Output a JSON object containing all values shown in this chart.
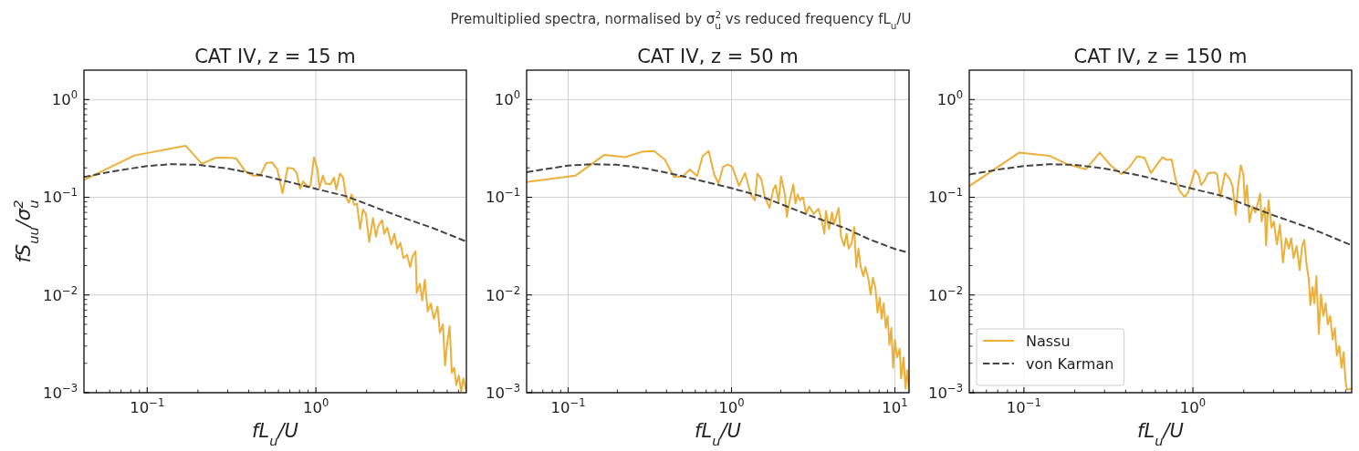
{
  "chart_data": [
    {
      "type": "line",
      "title": "CAT IV, z = 15 m",
      "xlabel": "fL$_{u}$/U",
      "ylabel": "fS$_{uu}$/σ$_{u}$$^{2}$",
      "annotations": [
        "Premultiplied spectra, normalised by σ$_{u}$$^{2}$ vs reduced frequency fL$_{u}$/U"
      ],
      "log": "xy",
      "grid": true,
      "xlim": [
        0.0422,
        7.8
      ],
      "ylim": [
        0.001,
        2
      ],
      "xticks": [
        {
          "value": 0.05,
          "label": null
        },
        {
          "value": 0.06,
          "label": null
        },
        {
          "value": 0.07,
          "label": null
        },
        {
          "value": 0.08,
          "label": null
        },
        {
          "value": 0.09,
          "label": null
        },
        {
          "value": 0.1,
          "label": "10$^{−1}$"
        },
        {
          "value": 0.2,
          "label": null
        },
        {
          "value": 0.3,
          "label": null
        },
        {
          "value": 0.4,
          "label": null
        },
        {
          "value": 0.5,
          "label": null
        },
        {
          "value": 0.6,
          "label": null
        },
        {
          "value": 0.7,
          "label": null
        },
        {
          "value": 0.8,
          "label": null
        },
        {
          "value": 0.9,
          "label": null
        },
        {
          "value": 1,
          "label": "10$^{0}$"
        },
        {
          "value": 2,
          "label": null
        },
        {
          "value": 3,
          "label": null
        },
        {
          "value": 4,
          "label": null
        },
        {
          "value": 5,
          "label": null
        },
        {
          "value": 6,
          "label": null
        },
        {
          "value": 7,
          "label": null
        }
      ],
      "yticks": [
        {
          "value": 0.001,
          "label": "10$^{−3}$"
        },
        {
          "value": 0.002,
          "label": null
        },
        {
          "value": 0.003,
          "label": null
        },
        {
          "value": 0.004,
          "label": null
        },
        {
          "value": 0.005,
          "label": null
        },
        {
          "value": 0.006,
          "label": null
        },
        {
          "value": 0.007,
          "label": null
        },
        {
          "value": 0.008,
          "label": null
        },
        {
          "value": 0.009,
          "label": null
        },
        {
          "value": 0.01,
          "label": "10$^{−2}$"
        },
        {
          "value": 0.02,
          "label": null
        },
        {
          "value": 0.03,
          "label": null
        },
        {
          "value": 0.04,
          "label": null
        },
        {
          "value": 0.05,
          "label": null
        },
        {
          "value": 0.06,
          "label": null
        },
        {
          "value": 0.07,
          "label": null
        },
        {
          "value": 0.08,
          "label": null
        },
        {
          "value": 0.09,
          "label": null
        },
        {
          "value": 0.1,
          "label": "10$^{−1}$"
        },
        {
          "value": 0.2,
          "label": null
        },
        {
          "value": 0.3,
          "label": null
        },
        {
          "value": 0.4,
          "label": null
        },
        {
          "value": 0.5,
          "label": null
        },
        {
          "value": 0.6,
          "label": null
        },
        {
          "value": 0.7,
          "label": null
        },
        {
          "value": 0.8,
          "label": null
        },
        {
          "value": 0.9,
          "label": null
        },
        {
          "value": 1,
          "label": "10$^{0}$"
        }
      ],
      "series": [
        {
          "color": "#ecb03a",
          "line_style": "solid",
          "x": [
            0.0422,
            0.084,
            0.169,
            0.211,
            0.254,
            0.294,
            0.337,
            0.382,
            0.422,
            0.468,
            0.508,
            0.548,
            0.59,
            0.634,
            0.68,
            0.733,
            0.77,
            0.806,
            0.84,
            0.891,
            0.928,
            0.975,
            1.02,
            1.05,
            1.1,
            1.14,
            1.22,
            1.28,
            1.32,
            1.39,
            1.45,
            1.51,
            1.57,
            1.63,
            1.68,
            1.75,
            1.83,
            1.9,
            1.98,
            2.07,
            2.18,
            2.27,
            2.34,
            2.47,
            2.54,
            2.65,
            2.8,
            2.92,
            3.04,
            3.17,
            3.3,
            3.47,
            3.62,
            3.74,
            3.9,
            3.96,
            4.13,
            4.27,
            4.42,
            4.6,
            4.8,
            5,
            5.26,
            5.43,
            5.66,
            5.83,
            6,
            6.21,
            6.39,
            6.6,
            6.8,
            7.03,
            7.26,
            7.48,
            7.8
          ],
          "values": [
            0.15,
            0.268,
            0.337,
            0.22,
            0.253,
            0.255,
            0.25,
            0.184,
            0.167,
            0.167,
            0.224,
            0.228,
            0.194,
            0.11,
            0.2,
            0.197,
            0.177,
            0.122,
            0.145,
            0.129,
            0.131,
            0.257,
            0.196,
            0.124,
            0.167,
            0.138,
            0.136,
            0.159,
            0.12,
            0.175,
            0.159,
            0.1,
            0.088,
            0.107,
            0.0836,
            0.0864,
            0.0472,
            0.0751,
            0.0675,
            0.0349,
            0.0615,
            0.0395,
            0.0507,
            0.0585,
            0.0424,
            0.0489,
            0.033,
            0.0424,
            0.0297,
            0.0342,
            0.0239,
            0.0257,
            0.0193,
            0.0248,
            0.028,
            0.0105,
            0.013,
            0.0088,
            0.0143,
            0.0068,
            0.0082,
            0.0057,
            0.0076,
            0.0041,
            0.005,
            0.0019,
            0.0032,
            0.0048,
            0.0016,
            0.0018,
            0.0012,
            0.0015,
            0.00103,
            0.0014,
            0.00103
          ]
        },
        {
          "color": "#444444",
          "line_style": "dashed",
          "x": [
            0.0422,
            0.06,
            0.1,
            0.14,
            0.2,
            0.3,
            0.5,
            0.7,
            1,
            1.5,
            2,
            3,
            5,
            7.8
          ],
          "values": [
            0.161,
            0.182,
            0.209,
            0.218,
            0.215,
            0.197,
            0.165,
            0.143,
            0.122,
            0.103,
            0.0853,
            0.0653,
            0.048,
            0.0352
          ]
        }
      ]
    },
    {
      "type": "line",
      "title": "CAT IV, z = 50 m",
      "xlabel": "fL$_{u}$/U",
      "log": "xy",
      "grid": true,
      "xlim": [
        0.0557,
        12.2
      ],
      "ylim": [
        0.001,
        2
      ],
      "xticks": [
        {
          "value": 0.06,
          "label": null
        },
        {
          "value": 0.07,
          "label": null
        },
        {
          "value": 0.08,
          "label": null
        },
        {
          "value": 0.09,
          "label": null
        },
        {
          "value": 0.1,
          "label": "10$^{−1}$"
        },
        {
          "value": 0.2,
          "label": null
        },
        {
          "value": 0.3,
          "label": null
        },
        {
          "value": 0.4,
          "label": null
        },
        {
          "value": 0.5,
          "label": null
        },
        {
          "value": 0.6,
          "label": null
        },
        {
          "value": 0.7,
          "label": null
        },
        {
          "value": 0.8,
          "label": null
        },
        {
          "value": 0.9,
          "label": null
        },
        {
          "value": 1,
          "label": "10$^{0}$"
        },
        {
          "value": 2,
          "label": null
        },
        {
          "value": 3,
          "label": null
        },
        {
          "value": 4,
          "label": null
        },
        {
          "value": 5,
          "label": null
        },
        {
          "value": 6,
          "label": null
        },
        {
          "value": 7,
          "label": null
        },
        {
          "value": 8,
          "label": null
        },
        {
          "value": 9,
          "label": null
        },
        {
          "value": 10,
          "label": "10$^{1}$"
        }
      ],
      "yticks": [
        {
          "value": 0.001,
          "label": "10$^{−3}$"
        },
        {
          "value": 0.002,
          "label": null
        },
        {
          "value": 0.003,
          "label": null
        },
        {
          "value": 0.004,
          "label": null
        },
        {
          "value": 0.005,
          "label": null
        },
        {
          "value": 0.006,
          "label": null
        },
        {
          "value": 0.007,
          "label": null
        },
        {
          "value": 0.008,
          "label": null
        },
        {
          "value": 0.009,
          "label": null
        },
        {
          "value": 0.01,
          "label": "10$^{−2}$"
        },
        {
          "value": 0.02,
          "label": null
        },
        {
          "value": 0.03,
          "label": null
        },
        {
          "value": 0.04,
          "label": null
        },
        {
          "value": 0.05,
          "label": null
        },
        {
          "value": 0.06,
          "label": null
        },
        {
          "value": 0.07,
          "label": null
        },
        {
          "value": 0.08,
          "label": null
        },
        {
          "value": 0.09,
          "label": null
        },
        {
          "value": 0.1,
          "label": "10$^{−1}$"
        },
        {
          "value": 0.2,
          "label": null
        },
        {
          "value": 0.3,
          "label": null
        },
        {
          "value": 0.4,
          "label": null
        },
        {
          "value": 0.5,
          "label": null
        },
        {
          "value": 0.6,
          "label": null
        },
        {
          "value": 0.7,
          "label": null
        },
        {
          "value": 0.8,
          "label": null
        },
        {
          "value": 0.9,
          "label": null
        },
        {
          "value": 1,
          "label": "10$^{0}$"
        }
      ],
      "series": [
        {
          "color": "#ecb03a",
          "line_style": "solid",
          "x": [
            0.0557,
            0.111,
            0.167,
            0.223,
            0.282,
            0.335,
            0.389,
            0.444,
            0.503,
            0.556,
            0.616,
            0.665,
            0.725,
            0.783,
            0.832,
            0.887,
            0.95,
            1.01,
            1.11,
            1.21,
            1.31,
            1.39,
            1.44,
            1.52,
            1.6,
            1.71,
            1.8,
            1.86,
            1.94,
            2.01,
            2.12,
            2.18,
            2.26,
            2.39,
            2.46,
            2.54,
            2.62,
            2.74,
            2.86,
            2.98,
            3.18,
            3.4,
            3.54,
            3.7,
            3.78,
            3.95,
            4.12,
            4.24,
            4.39,
            4.52,
            4.68,
            4.89,
            5.06,
            5.21,
            5.44,
            5.63,
            5.8,
            5.98,
            6.18,
            6.4,
            6.6,
            6.89,
            7.1,
            7.34,
            7.6,
            7.83,
            8.07,
            8.28,
            8.53,
            8.79,
            9.02,
            9.25,
            9.5,
            9.75,
            10,
            10.3,
            10.7,
            10.9,
            11.3,
            11.6,
            11.9,
            12.2
          ],
          "values": [
            0.143,
            0.167,
            0.272,
            0.257,
            0.292,
            0.297,
            0.245,
            0.162,
            0.163,
            0.193,
            0.165,
            0.263,
            0.297,
            0.171,
            0.138,
            0.205,
            0.216,
            0.205,
            0.131,
            0.177,
            0.107,
            0.0931,
            0.175,
            0.154,
            0.1,
            0.0779,
            0.12,
            0.133,
            0.0898,
            0.163,
            0.107,
            0.0628,
            0.0898,
            0.135,
            0.0867,
            0.107,
            0.0931,
            0.1,
            0.0675,
            0.0807,
            0.0675,
            0.0762,
            0.0606,
            0.0424,
            0.0725,
            0.0472,
            0.07,
            0.0525,
            0.0651,
            0.0779,
            0.0395,
            0.0318,
            0.0424,
            0.0297,
            0.0342,
            0.0496,
            0.0193,
            0.0297,
            0.0193,
            0.0156,
            0.0193,
            0.0145,
            0.0101,
            0.015,
            0.0117,
            0.0066,
            0.0094,
            0.0057,
            0.0082,
            0.0046,
            0.0061,
            0.0031,
            0.0046,
            0.0018,
            0.0035,
            0.0023,
            0.0028,
            0.0014,
            0.0023,
            0.0011,
            0.0017,
            0.00103
          ]
        },
        {
          "color": "#444444",
          "line_style": "dashed",
          "x": [
            0.0557,
            0.1,
            0.14,
            0.2,
            0.3,
            0.5,
            0.7,
            1,
            1.5,
            2,
            3,
            5,
            7,
            10,
            12.2
          ],
          "values": [
            0.181,
            0.211,
            0.218,
            0.215,
            0.197,
            0.165,
            0.143,
            0.124,
            0.103,
            0.0853,
            0.0653,
            0.048,
            0.037,
            0.0296,
            0.027
          ]
        }
      ]
    },
    {
      "type": "line",
      "title": "CAT IV, z = 150 m",
      "xlabel": "fL$_{u}$/U",
      "log": "xy",
      "grid": true,
      "legend": "bottom left",
      "xlim": [
        0.0475,
        8.7
      ],
      "ylim": [
        0.001,
        2
      ],
      "xticks": [
        {
          "value": 0.05,
          "label": null
        },
        {
          "value": 0.06,
          "label": null
        },
        {
          "value": 0.07,
          "label": null
        },
        {
          "value": 0.08,
          "label": null
        },
        {
          "value": 0.09,
          "label": null
        },
        {
          "value": 0.1,
          "label": "10$^{−1}$"
        },
        {
          "value": 0.2,
          "label": null
        },
        {
          "value": 0.3,
          "label": null
        },
        {
          "value": 0.4,
          "label": null
        },
        {
          "value": 0.5,
          "label": null
        },
        {
          "value": 0.6,
          "label": null
        },
        {
          "value": 0.7,
          "label": null
        },
        {
          "value": 0.8,
          "label": null
        },
        {
          "value": 0.9,
          "label": null
        },
        {
          "value": 1,
          "label": "10$^{0}$"
        },
        {
          "value": 2,
          "label": null
        },
        {
          "value": 3,
          "label": null
        },
        {
          "value": 4,
          "label": null
        },
        {
          "value": 5,
          "label": null
        },
        {
          "value": 6,
          "label": null
        },
        {
          "value": 7,
          "label": null
        },
        {
          "value": 8,
          "label": null
        }
      ],
      "yticks": [
        {
          "value": 0.001,
          "label": "10$^{−3}$"
        },
        {
          "value": 0.002,
          "label": null
        },
        {
          "value": 0.003,
          "label": null
        },
        {
          "value": 0.004,
          "label": null
        },
        {
          "value": 0.005,
          "label": null
        },
        {
          "value": 0.006,
          "label": null
        },
        {
          "value": 0.007,
          "label": null
        },
        {
          "value": 0.008,
          "label": null
        },
        {
          "value": 0.009,
          "label": null
        },
        {
          "value": 0.01,
          "label": "10$^{−2}$"
        },
        {
          "value": 0.02,
          "label": null
        },
        {
          "value": 0.03,
          "label": null
        },
        {
          "value": 0.04,
          "label": null
        },
        {
          "value": 0.05,
          "label": null
        },
        {
          "value": 0.06,
          "label": null
        },
        {
          "value": 0.07,
          "label": null
        },
        {
          "value": 0.08,
          "label": null
        },
        {
          "value": 0.09,
          "label": null
        },
        {
          "value": 0.1,
          "label": "10$^{−1}$"
        },
        {
          "value": 0.2,
          "label": null
        },
        {
          "value": 0.3,
          "label": null
        },
        {
          "value": 0.4,
          "label": null
        },
        {
          "value": 0.5,
          "label": null
        },
        {
          "value": 0.6,
          "label": null
        },
        {
          "value": 0.7,
          "label": null
        },
        {
          "value": 0.8,
          "label": null
        },
        {
          "value": 0.9,
          "label": null
        },
        {
          "value": 1,
          "label": "10$^{0}$"
        }
      ],
      "series": [
        {
          "name": "Nassu",
          "color": "#ecb03a",
          "line_style": "solid",
          "x": [
            0.0475,
            0.0936,
            0.141,
            0.182,
            0.233,
            0.281,
            0.326,
            0.377,
            0.418,
            0.469,
            0.518,
            0.564,
            0.66,
            0.703,
            0.748,
            0.789,
            0.836,
            0.894,
            0.94,
            0.979,
            1.03,
            1.08,
            1.12,
            1.17,
            1.23,
            1.34,
            1.39,
            1.45,
            1.55,
            1.65,
            1.72,
            1.79,
            1.85,
            1.92,
            1.99,
            2.03,
            2.09,
            2.16,
            2.25,
            2.34,
            2.41,
            2.5,
            2.55,
            2.66,
            2.71,
            2.8,
            2.92,
            3.01,
            3.14,
            3.27,
            3.41,
            3.55,
            3.7,
            3.81,
            3.94,
            4.11,
            4.28,
            4.43,
            4.56,
            4.71,
            4.85,
            4.95,
            5.1,
            5.23,
            5.38,
            5.56,
            5.72,
            5.92,
            6.1,
            6.28,
            6.49,
            6.71,
            6.91,
            7.11,
            7.35,
            7.57,
            7.79,
            8,
            8.16,
            8.7
          ],
          "values": [
            0.13,
            0.286,
            0.266,
            0.216,
            0.194,
            0.286,
            0.212,
            0.173,
            0.2,
            0.263,
            0.253,
            0.177,
            0.257,
            0.241,
            0.244,
            0.154,
            0.115,
            0.101,
            0.113,
            0.143,
            0.19,
            0.171,
            0.133,
            0.148,
            0.177,
            0.18,
            0.171,
            0.1,
            0.177,
            0.154,
            0.128,
            0.0661,
            0.131,
            0.212,
            0.171,
            0.0867,
            0.133,
            0.0556,
            0.0807,
            0.07,
            0.0849,
            0.109,
            0.0565,
            0.0779,
            0.0323,
            0.0931,
            0.0489,
            0.0565,
            0.033,
            0.0525,
            0.0215,
            0.0381,
            0.0297,
            0.0381,
            0.0239,
            0.0318,
            0.018,
            0.0318,
            0.0367,
            0.02,
            0.0145,
            0.0079,
            0.0121,
            0.0082,
            0.0156,
            0.004,
            0.0101,
            0.0061,
            0.0082,
            0.005,
            0.0061,
            0.0035,
            0.0046,
            0.0024,
            0.003,
            0.0018,
            0.0026,
            0.0013,
            0.00107,
            0.0011
          ]
        },
        {
          "name": "von Karman",
          "color": "#444444",
          "line_style": "dashed",
          "x": [
            0.0475,
            0.07,
            0.1,
            0.14,
            0.2,
            0.3,
            0.5,
            0.7,
            1,
            1.5,
            2,
            3,
            5,
            8.7
          ],
          "values": [
            0.171,
            0.192,
            0.209,
            0.218,
            0.215,
            0.197,
            0.165,
            0.143,
            0.122,
            0.103,
            0.0853,
            0.0653,
            0.048,
            0.0322
          ]
        }
      ]
    }
  ]
}
